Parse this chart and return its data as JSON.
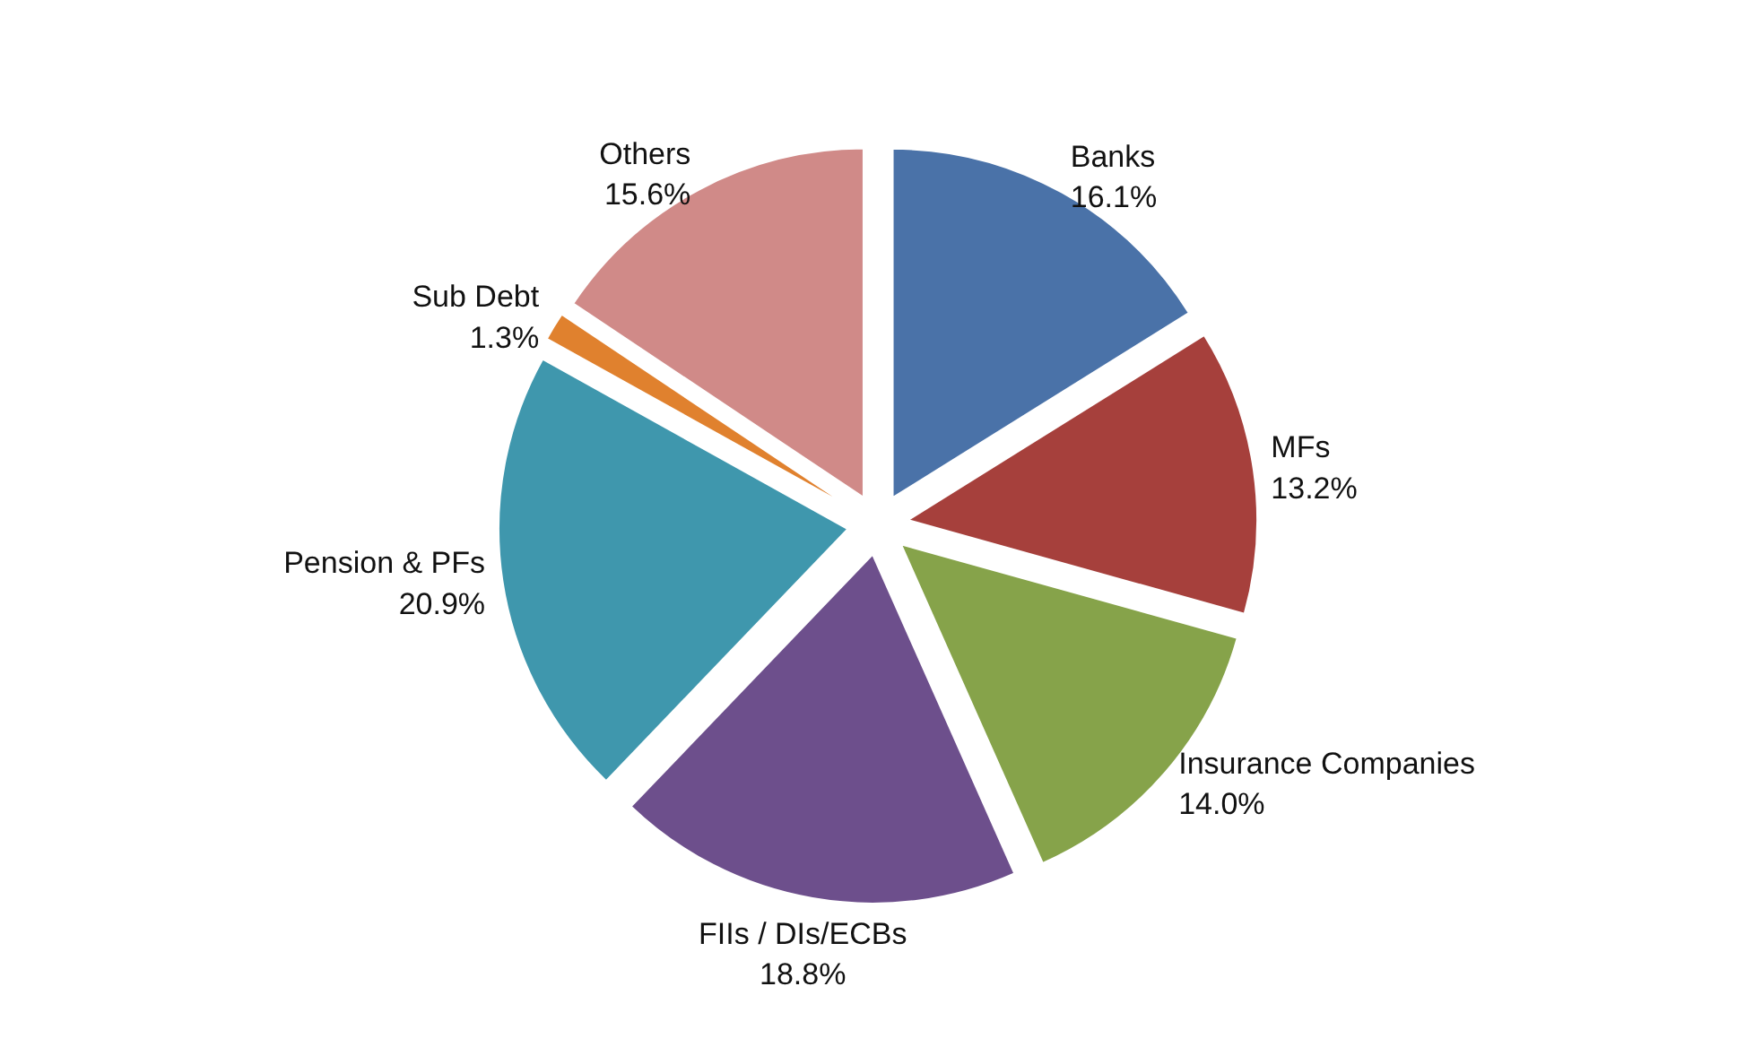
{
  "chart_data": {
    "type": "pie",
    "categories": [
      "Banks",
      "MFs",
      "Insurance Companies",
      "FIIs / DIs/ECBs",
      "Pension & PFs",
      "Sub Debt",
      "Others"
    ],
    "values": [
      16.1,
      13.2,
      14.0,
      18.8,
      20.9,
      1.3,
      15.6
    ],
    "colors": [
      "#4a72a8",
      "#a6403c",
      "#86a34a",
      "#6d4f8c",
      "#3f97ad",
      "#e0812e",
      "#d08a88"
    ],
    "value_labels": [
      "16.1%",
      "13.2%",
      "14.0%",
      "18.8%",
      "20.9%",
      "1.3%",
      "15.6%"
    ]
  }
}
